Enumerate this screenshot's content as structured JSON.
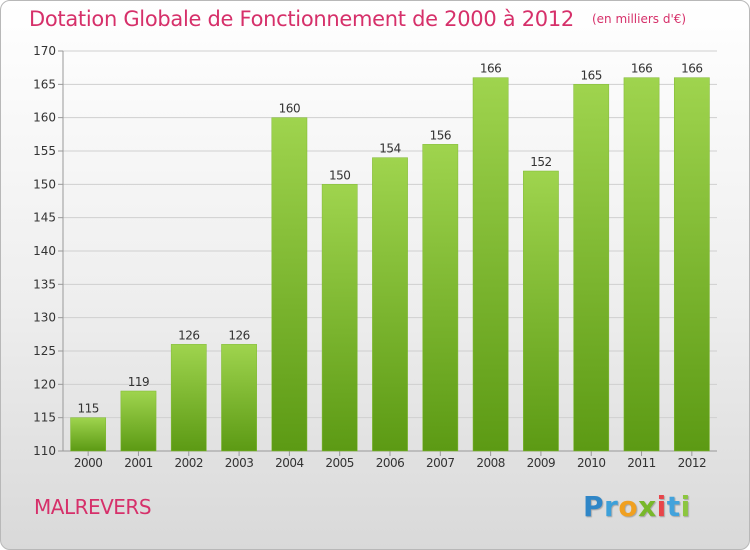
{
  "title": "Dotation Globale de Fonctionnement de 2000 à 2012",
  "unit_note": "(en milliers d'€)",
  "commune": "MALREVERS",
  "logo_text": "Proxiti",
  "colors": {
    "title": "#d6306a",
    "bar_top": "#9fd44e",
    "bar_bottom": "#5c9a14",
    "grid": "#cfcfcf",
    "axis_text": "#333333"
  },
  "chart_data": {
    "type": "bar",
    "title": "Dotation Globale de Fonctionnement de 2000 à 2012",
    "subtitle": "(en milliers d'€)",
    "xlabel": "",
    "ylabel": "",
    "categories": [
      "2000",
      "2001",
      "2002",
      "2003",
      "2004",
      "2005",
      "2006",
      "2007",
      "2008",
      "2009",
      "2010",
      "2011",
      "2012"
    ],
    "values": [
      115,
      119,
      126,
      126,
      160,
      150,
      154,
      156,
      166,
      152,
      165,
      166,
      166
    ],
    "ylim": [
      110,
      170
    ],
    "yticks": [
      110,
      115,
      120,
      125,
      130,
      135,
      140,
      145,
      150,
      155,
      160,
      165,
      170
    ],
    "grid": true,
    "data_labels": true
  }
}
